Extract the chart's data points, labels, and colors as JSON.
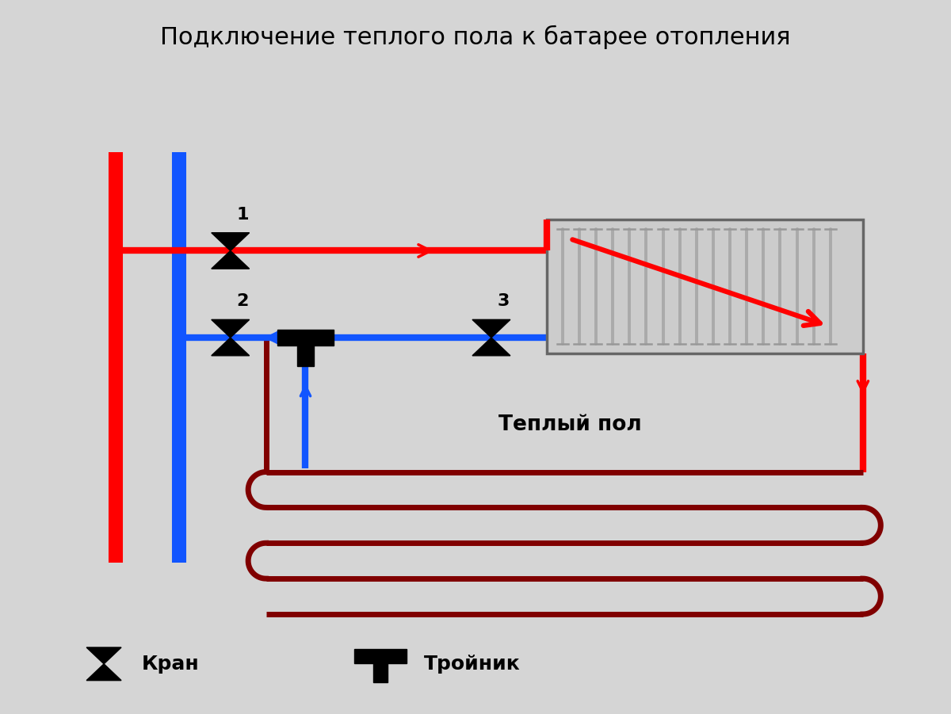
{
  "title": "Подключение теплого пола к батарее отопления",
  "title_fontsize": 22,
  "bg_color": "#d5d5d5",
  "red_color": "#ff0000",
  "blue_color": "#1155ff",
  "dark_red": "#800000",
  "black": "#000000",
  "label1": "1",
  "label2": "2",
  "label3": "3",
  "legend_valve": "Кран",
  "legend_tee": "Тройник",
  "warm_floor_label": "Теплый пол",
  "rad_fill": "#cccccc",
  "rad_edge": "#666666",
  "fin_color": "#aaaaaa"
}
